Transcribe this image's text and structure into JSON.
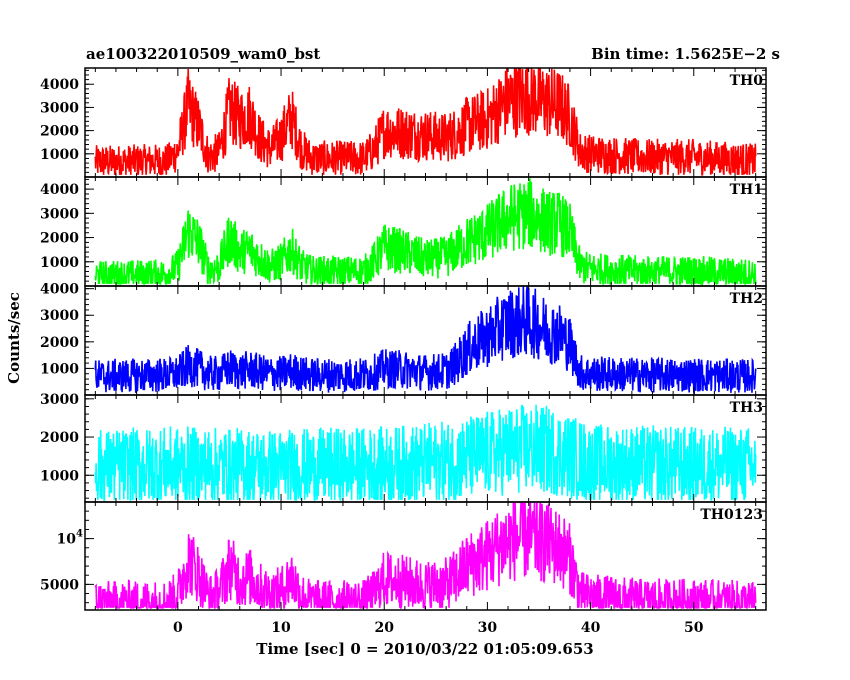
{
  "header": {
    "title": "ae100322010509_wam0_bst",
    "bin_time": "Bin time: 1.5625E−2 s"
  },
  "axes": {
    "ylabel": "Counts/sec",
    "xlabel": "Time [sec] 0 = 2010/03/22 01:05:09.653"
  },
  "chart_data": [
    {
      "type": "line",
      "name": "TH0",
      "color": "#ff0000",
      "xlim": [
        -9,
        57
      ],
      "ylim": [
        0,
        4700
      ],
      "yticks": [
        1000,
        2000,
        3000,
        4000
      ],
      "ytick_labels": [
        "1000",
        "2000",
        "3000",
        "4000"
      ],
      "shape": {
        "base": 800,
        "noise": 500,
        "x": [
          -8,
          -1,
          0,
          1,
          2,
          3,
          4,
          5,
          6,
          7,
          8,
          9,
          10,
          11,
          12,
          13,
          18,
          19,
          20,
          22,
          24,
          26,
          27,
          28,
          30,
          32,
          34,
          36,
          37,
          38,
          39,
          40,
          45,
          50,
          56
        ],
        "y": [
          650,
          700,
          1100,
          3100,
          2200,
          850,
          1100,
          2900,
          2500,
          2700,
          1600,
          1200,
          1700,
          2600,
          1200,
          800,
          800,
          1200,
          2000,
          1900,
          1800,
          1700,
          1900,
          2200,
          2500,
          3300,
          3500,
          3200,
          3100,
          2600,
          1100,
          1000,
          850,
          850,
          700
        ]
      }
    },
    {
      "type": "line",
      "name": "TH1",
      "color": "#00ff00",
      "xlim": [
        -9,
        57
      ],
      "ylim": [
        0,
        4500
      ],
      "yticks": [
        1000,
        2000,
        3000,
        4000
      ],
      "ytick_labels": [
        "1000",
        "2000",
        "3000",
        "4000"
      ],
      "shape": {
        "base": 600,
        "noise": 450,
        "x": [
          -8,
          -1,
          0,
          1,
          2,
          3,
          4,
          5,
          6,
          7,
          8,
          9,
          10,
          11,
          12,
          13,
          18,
          19,
          20,
          22,
          24,
          26,
          27,
          28,
          30,
          32,
          34,
          36,
          37,
          38,
          39,
          40,
          45,
          50,
          56
        ],
        "y": [
          450,
          500,
          800,
          2300,
          1800,
          650,
          800,
          2000,
          1400,
          1500,
          1100,
          800,
          1000,
          1500,
          800,
          600,
          600,
          1000,
          1600,
          1400,
          1100,
          1200,
          1500,
          1800,
          2200,
          2800,
          3000,
          2600,
          2600,
          2200,
          800,
          700,
          600,
          600,
          500
        ]
      }
    },
    {
      "type": "line",
      "name": "TH2",
      "color": "#0000ff",
      "xlim": [
        -9,
        57
      ],
      "ylim": [
        0,
        4100
      ],
      "yticks": [
        1000,
        2000,
        3000,
        4000
      ],
      "ytick_labels": [
        "1000",
        "2000",
        "3000",
        "4000"
      ],
      "shape": {
        "base": 700,
        "noise": 400,
        "x": [
          -8,
          -1,
          0,
          1,
          2,
          3,
          4,
          5,
          6,
          7,
          8,
          9,
          10,
          11,
          12,
          13,
          18,
          19,
          20,
          22,
          24,
          26,
          27,
          28,
          30,
          32,
          34,
          36,
          37,
          38,
          39,
          40,
          45,
          50,
          56
        ],
        "y": [
          700,
          750,
          800,
          1100,
          1000,
          800,
          800,
          1000,
          900,
          950,
          850,
          800,
          800,
          900,
          800,
          750,
          750,
          850,
          1000,
          950,
          850,
          900,
          1200,
          1700,
          2200,
          2700,
          2800,
          2400,
          2300,
          1900,
          850,
          800,
          750,
          750,
          700
        ]
      }
    },
    {
      "type": "line",
      "name": "TH3",
      "color": "#00ffff",
      "xlim": [
        -9,
        57
      ],
      "ylim": [
        300,
        3100
      ],
      "yticks": [
        1000,
        2000,
        3000
      ],
      "ytick_labels": [
        "1000",
        "2000",
        "3000"
      ],
      "shape": {
        "base": 1200,
        "noise": 600,
        "x": [
          -8,
          0,
          10,
          20,
          26,
          28,
          30,
          32,
          34,
          36,
          38,
          40,
          50,
          56
        ],
        "y": [
          1200,
          1250,
          1200,
          1250,
          1350,
          1450,
          1550,
          1650,
          1700,
          1650,
          1500,
          1300,
          1250,
          1250
        ]
      }
    },
    {
      "type": "line",
      "name": "TH0123",
      "color": "#ff00ff",
      "xlim": [
        -9,
        57
      ],
      "ylim": [
        2200,
        14000
      ],
      "yticks": [
        5000,
        10000
      ],
      "ytick_labels": [
        "5000",
        "10^4"
      ],
      "shape": {
        "base": 3200,
        "noise": 1200,
        "x": [
          -8,
          -1,
          0,
          1,
          2,
          3,
          4,
          5,
          6,
          7,
          8,
          9,
          10,
          11,
          12,
          13,
          18,
          19,
          20,
          22,
          24,
          26,
          27,
          28,
          30,
          32,
          34,
          36,
          37,
          38,
          39,
          40,
          45,
          50,
          56
        ],
        "y": [
          3100,
          3200,
          4000,
          7800,
          6200,
          3600,
          4200,
          7000,
          5500,
          5800,
          4600,
          4000,
          4300,
          5800,
          3800,
          3200,
          3200,
          4000,
          5600,
          5200,
          4800,
          5000,
          5800,
          7000,
          8200,
          9800,
          10200,
          9400,
          9000,
          7800,
          3900,
          3700,
          3300,
          3300,
          3100
        ]
      }
    }
  ],
  "xaxis": {
    "ticks": [
      0,
      10,
      20,
      30,
      40,
      50
    ],
    "tick_labels": [
      "0",
      "10",
      "20",
      "30",
      "40",
      "50"
    ]
  }
}
